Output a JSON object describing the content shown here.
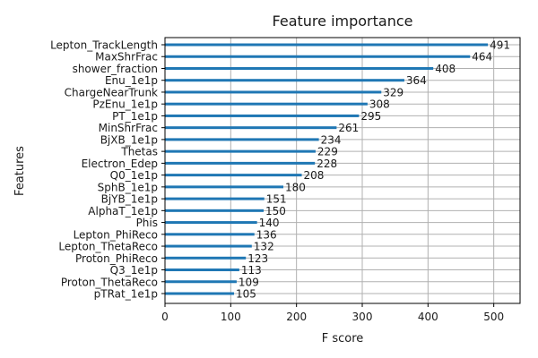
{
  "chart_data": {
    "type": "bar",
    "orientation": "horizontal",
    "title": "Feature importance",
    "xlabel": "F score",
    "ylabel": "Features",
    "xlim": [
      0,
      540
    ],
    "xticks": [
      0,
      100,
      200,
      300,
      400,
      500
    ],
    "grid": true,
    "categories": [
      "Lepton_TrackLength",
      "MaxShrFrac",
      "shower_fraction",
      "Enu_1e1p",
      "ChargeNearTrunk",
      "PzEnu_1e1p",
      "PT_1e1p",
      "MinShrFrac",
      "BjXB_1e1p",
      "Thetas",
      "Electron_Edep",
      "Q0_1e1p",
      "SphB_1e1p",
      "BjYB_1e1p",
      "AlphaT_1e1p",
      "Phis",
      "Lepton_PhiReco",
      "Lepton_ThetaReco",
      "Proton_PhiReco",
      "Q3_1e1p",
      "Proton_ThetaReco",
      "pTRat_1e1p"
    ],
    "values": [
      491,
      464,
      408,
      364,
      329,
      308,
      295,
      261,
      234,
      229,
      228,
      208,
      180,
      151,
      150,
      140,
      136,
      132,
      123,
      113,
      109,
      105
    ],
    "bar_color": "#1f77b4"
  }
}
